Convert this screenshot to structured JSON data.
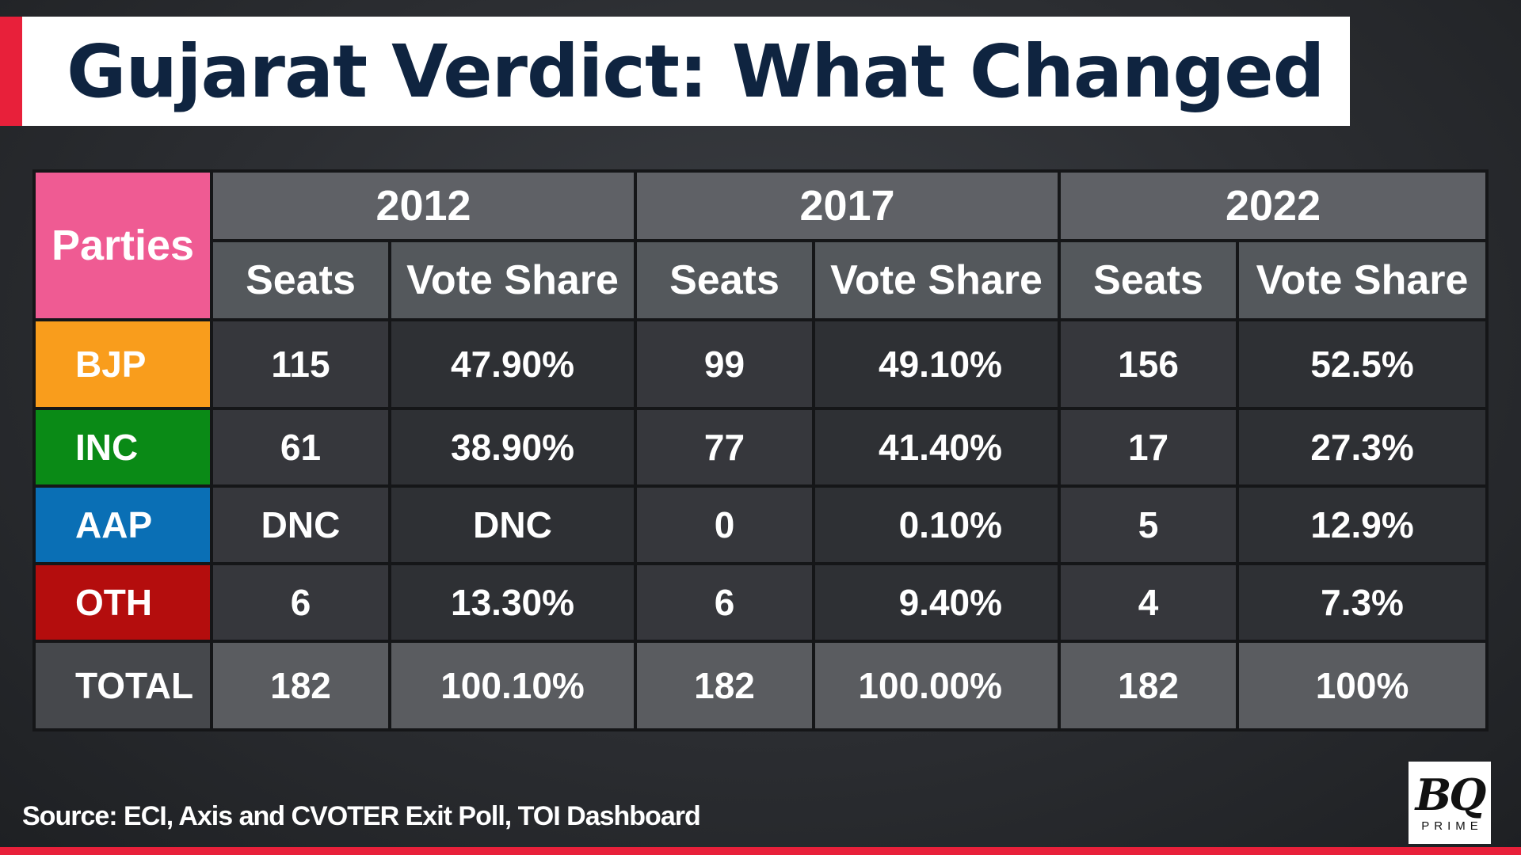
{
  "title": "Gujarat Verdict: What Changed",
  "source": "Source: ECI, Axis and CVOTER Exit Poll, TOI Dashboard",
  "logo": {
    "main": "BQ",
    "sub": "PRIME"
  },
  "colors": {
    "accent": "#e8203a",
    "title_text": "#0f2440",
    "parties_header": "#ef5b93",
    "BJP": "#f99d1c",
    "INC": "#0a8a16",
    "AAP": "#0a6fb5",
    "OTH": "#b40d0d",
    "TOTAL": "#46484c"
  },
  "chart_data": {
    "type": "table",
    "title": "Gujarat Verdict: What Changed",
    "header": {
      "parties": "Parties",
      "years": [
        "2012",
        "2017",
        "2022"
      ],
      "seats_label": "Seats",
      "vote_label": "Vote Share"
    },
    "rows": [
      {
        "party": "BJP",
        "values": [
          {
            "seats": "115",
            "vote": "47.90%"
          },
          {
            "seats": "99",
            "vote": "49.10%"
          },
          {
            "seats": "156",
            "vote": "52.5%"
          }
        ]
      },
      {
        "party": "INC",
        "values": [
          {
            "seats": "61",
            "vote": "38.90%"
          },
          {
            "seats": "77",
            "vote": "41.40%"
          },
          {
            "seats": "17",
            "vote": "27.3%"
          }
        ]
      },
      {
        "party": "AAP",
        "values": [
          {
            "seats": "DNC",
            "vote": "DNC"
          },
          {
            "seats": "0",
            "vote": "0.10%"
          },
          {
            "seats": "5",
            "vote": "12.9%"
          }
        ]
      },
      {
        "party": "OTH",
        "values": [
          {
            "seats": "6",
            "vote": "13.30%"
          },
          {
            "seats": "6",
            "vote": "9.40%"
          },
          {
            "seats": "4",
            "vote": "7.3%"
          }
        ]
      },
      {
        "party": "TOTAL",
        "values": [
          {
            "seats": "182",
            "vote": "100.10%"
          },
          {
            "seats": "182",
            "vote": "100.00%"
          },
          {
            "seats": "182",
            "vote": "100%"
          }
        ]
      }
    ]
  }
}
